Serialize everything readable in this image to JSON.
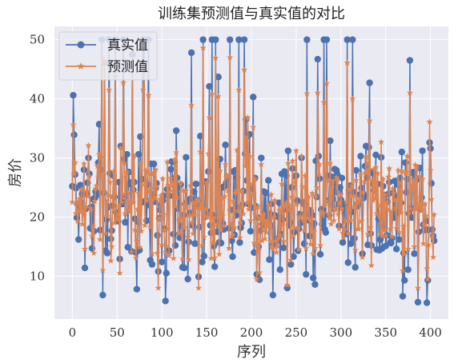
{
  "chart_data": {
    "type": "line",
    "title": "训练集预测值与真实值的对比",
    "xlabel": "序列",
    "ylabel": "房价",
    "xlim": [
      -20,
      420
    ],
    "ylim": [
      2.75,
      52.25
    ],
    "xticks": [
      0,
      50,
      100,
      150,
      200,
      250,
      300,
      350,
      400
    ],
    "yticks": [
      10,
      20,
      30,
      40,
      50
    ],
    "grid": true,
    "legend_position": "top-left",
    "background_color": "#EAEAF2",
    "series": [
      {
        "name": "真实值",
        "color": "#4C72B0",
        "marker": "circle",
        "seed": 7,
        "base": 22,
        "sigma": 7.5,
        "mean_y": 21.8
      },
      {
        "name": "预测值",
        "color": "#DD8452",
        "marker": "star",
        "seed": 13,
        "base": 22,
        "sigma": 5.5,
        "mean_y": 22.0
      }
    ],
    "n_points": 405
  }
}
